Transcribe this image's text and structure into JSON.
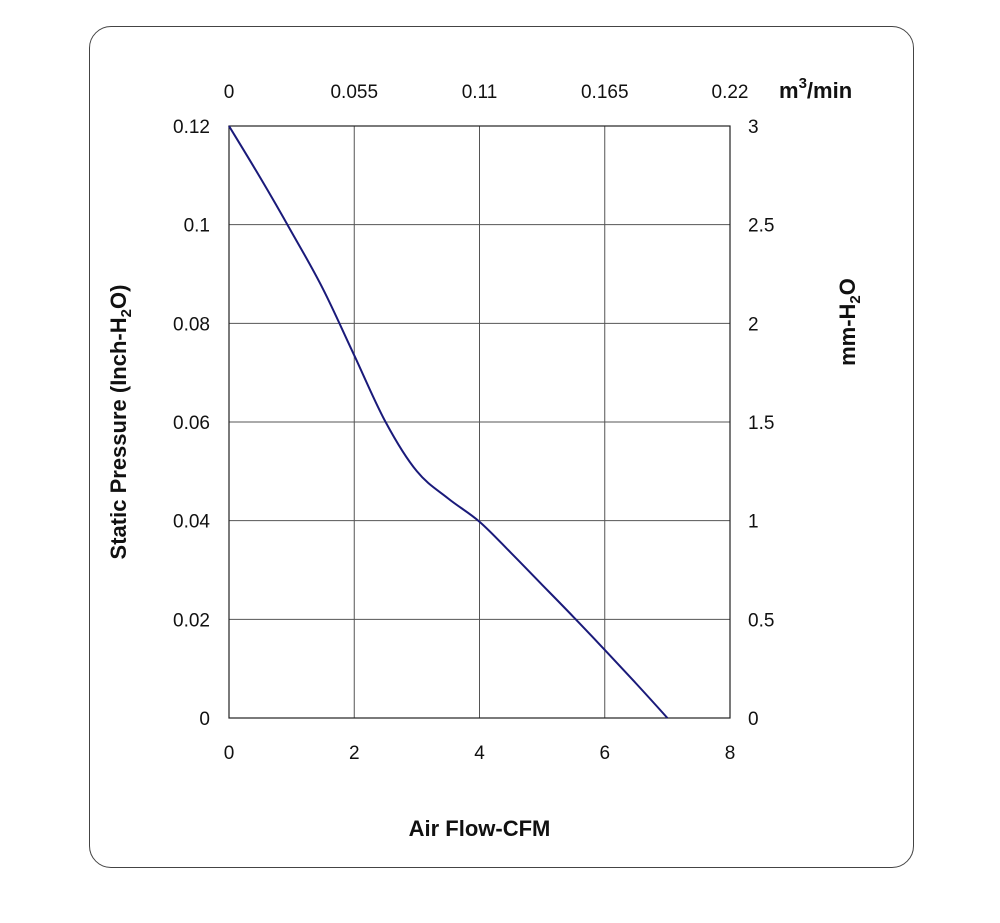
{
  "chart_data": {
    "type": "line",
    "xlabel": "Air Flow-CFM",
    "ylabel": "Static Pressure (Inch-H",
    "ylabel_sub": "2",
    "ylabel_end": "O)",
    "y2label": "mm-H",
    "y2label_sub": "2",
    "y2label_end": "O",
    "x2label": "m",
    "x2label_sup": "3",
    "x2label_end": "/min",
    "xlim": [
      0,
      8
    ],
    "ylim": [
      0,
      0.12
    ],
    "x_ticks": [
      "0",
      "2",
      "4",
      "6",
      "8"
    ],
    "y_ticks": [
      "0",
      "0.02",
      "0.04",
      "0.06",
      "0.08",
      "0.1",
      "0.12"
    ],
    "x2_ticks": [
      "0",
      "0.055",
      "0.11",
      "0.165",
      "0.22"
    ],
    "y2_ticks": [
      "0",
      "0.5",
      "1",
      "1.5",
      "2",
      "2.5",
      "3"
    ],
    "grid": true,
    "line_color": "#1a1a7a",
    "series": [
      {
        "x": [
          0,
          0.5,
          1.0,
          1.5,
          2.0,
          2.5,
          3.0,
          3.5,
          4.0,
          4.5,
          5.0,
          5.5,
          6.0,
          6.5,
          7.0
        ],
        "y": [
          0.12,
          0.1095,
          0.0985,
          0.087,
          0.0735,
          0.06,
          0.05,
          0.0445,
          0.0398,
          0.0335,
          0.027,
          0.0205,
          0.0138,
          0.007,
          0.0
        ]
      }
    ]
  }
}
